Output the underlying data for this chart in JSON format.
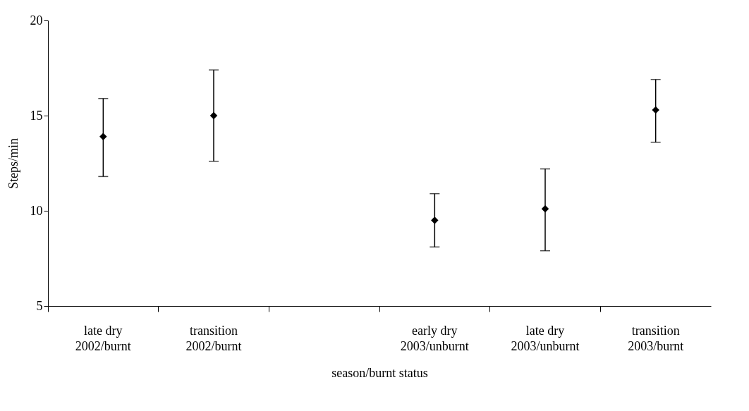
{
  "chart_data": {
    "type": "scatter",
    "xlabel": "season/burnt status",
    "ylabel": "Steps/min",
    "categories": [
      "late dry\n2002/burnt",
      "transition\n2002/burnt",
      null,
      "early dry\n2003/unburnt",
      "late dry\n2003/unburnt",
      "transition\n2003/burnt"
    ],
    "values": [
      13.9,
      15.0,
      null,
      9.5,
      10.1,
      15.3
    ],
    "errors": [
      [
        11.8,
        15.9
      ],
      [
        12.6,
        17.4
      ],
      null,
      [
        8.1,
        10.9
      ],
      [
        7.9,
        12.2
      ],
      [
        13.6,
        16.9
      ]
    ],
    "color": "#000000",
    "marker": "diamond",
    "ylim": [
      5,
      20
    ],
    "yticks": [
      5,
      10,
      15,
      20
    ],
    "grid": false
  }
}
